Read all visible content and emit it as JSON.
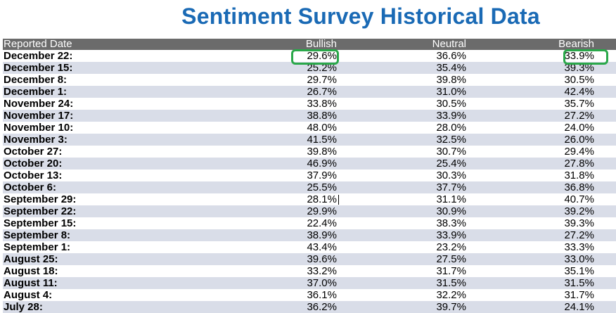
{
  "title": "Sentiment Survey Historical Data",
  "columns": {
    "date": "Reported Date",
    "bullish": "Bullish",
    "neutral": "Neutral",
    "bearish": "Bearish"
  },
  "colors": {
    "title": "#1a6ab5",
    "header_bg": "#6b6b6b",
    "alt_row": "#d9dde8",
    "highlight": "#2aa84a"
  },
  "rows": [
    {
      "date": "December 22:",
      "bullish": "29.6%",
      "neutral": "36.6%",
      "bearish": "33.9%"
    },
    {
      "date": "December 15:",
      "bullish": "25.2%",
      "neutral": "35.4%",
      "bearish": "39.3%"
    },
    {
      "date": "December 8:",
      "bullish": "29.7%",
      "neutral": "39.8%",
      "bearish": "30.5%"
    },
    {
      "date": "December 1:",
      "bullish": "26.7%",
      "neutral": "31.0%",
      "bearish": "42.4%"
    },
    {
      "date": "November 24:",
      "bullish": "33.8%",
      "neutral": "30.5%",
      "bearish": "35.7%"
    },
    {
      "date": "November 17:",
      "bullish": "38.8%",
      "neutral": "33.9%",
      "bearish": "27.2%"
    },
    {
      "date": "November 10:",
      "bullish": "48.0%",
      "neutral": "28.0%",
      "bearish": "24.0%"
    },
    {
      "date": "November 3:",
      "bullish": "41.5%",
      "neutral": "32.5%",
      "bearish": "26.0%"
    },
    {
      "date": "October 27:",
      "bullish": "39.8%",
      "neutral": "30.7%",
      "bearish": "29.4%"
    },
    {
      "date": "October 20:",
      "bullish": "46.9%",
      "neutral": "25.4%",
      "bearish": "27.8%"
    },
    {
      "date": "October 13:",
      "bullish": "37.9%",
      "neutral": "30.3%",
      "bearish": "31.8%"
    },
    {
      "date": "October 6:",
      "bullish": "25.5%",
      "neutral": "37.7%",
      "bearish": "36.8%"
    },
    {
      "date": "September 29:",
      "bullish": "28.1%",
      "neutral": "31.1%",
      "bearish": "40.7%"
    },
    {
      "date": "September 22:",
      "bullish": "29.9%",
      "neutral": "30.9%",
      "bearish": "39.2%"
    },
    {
      "date": "September 15:",
      "bullish": "22.4%",
      "neutral": "38.3%",
      "bearish": "39.3%"
    },
    {
      "date": "September 8:",
      "bullish": "38.9%",
      "neutral": "33.9%",
      "bearish": "27.2%"
    },
    {
      "date": "September 1:",
      "bullish": "43.4%",
      "neutral": "23.2%",
      "bearish": "33.3%"
    },
    {
      "date": "August 25:",
      "bullish": "39.6%",
      "neutral": "27.5%",
      "bearish": "33.0%"
    },
    {
      "date": "August 18:",
      "bullish": "33.2%",
      "neutral": "31.7%",
      "bearish": "35.1%"
    },
    {
      "date": "August 11:",
      "bullish": "37.0%",
      "neutral": "31.5%",
      "bearish": "31.5%"
    },
    {
      "date": "August 4:",
      "bullish": "36.1%",
      "neutral": "32.2%",
      "bearish": "31.7%"
    },
    {
      "date": "July 28:",
      "bullish": "36.2%",
      "neutral": "39.7%",
      "bearish": "24.1%"
    }
  ]
}
